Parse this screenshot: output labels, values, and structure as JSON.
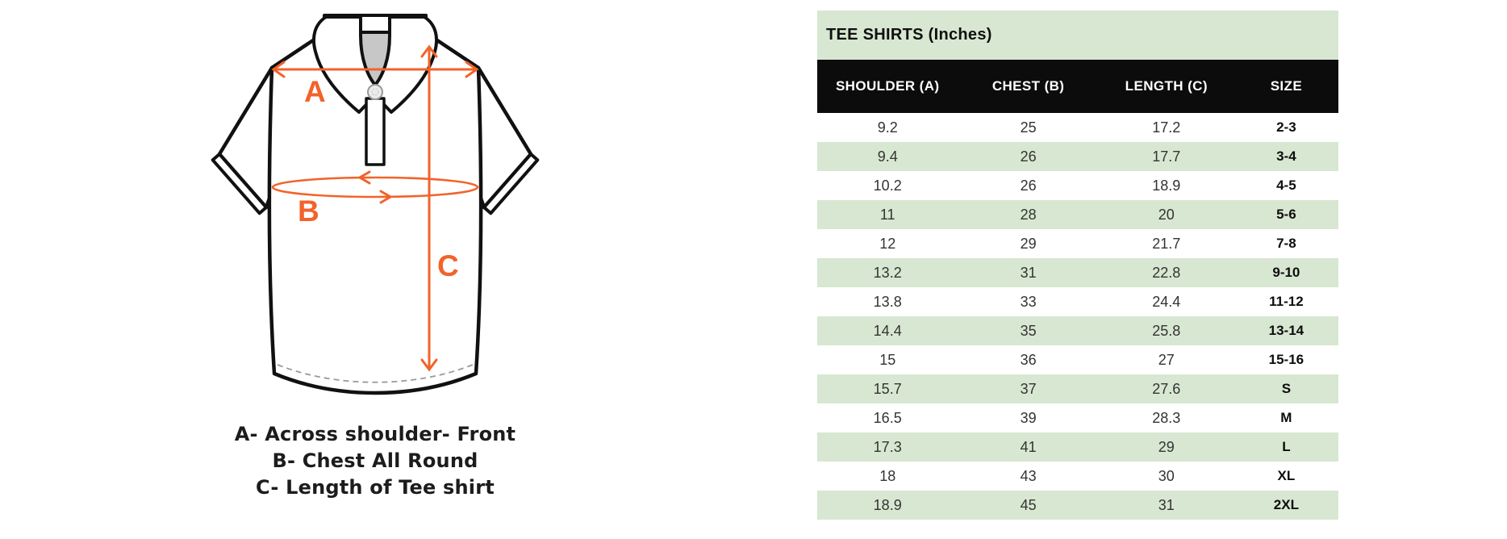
{
  "table": {
    "title": "TEE SHIRTS (Inches)",
    "columns": [
      "SHOULDER (A)",
      "CHEST (B)",
      "LENGTH (C)",
      "SIZE"
    ],
    "rows": [
      [
        "9.2",
        "25",
        "17.2",
        "2-3"
      ],
      [
        "9.4",
        "26",
        "17.7",
        "3-4"
      ],
      [
        "10.2",
        "26",
        "18.9",
        "4-5"
      ],
      [
        "11",
        "28",
        "20",
        "5-6"
      ],
      [
        "12",
        "29",
        "21.7",
        "7-8"
      ],
      [
        "13.2",
        "31",
        "22.8",
        "9-10"
      ],
      [
        "13.8",
        "33",
        "24.4",
        "11-12"
      ],
      [
        "14.4",
        "35",
        "25.8",
        "13-14"
      ],
      [
        "15",
        "36",
        "27",
        "15-16"
      ],
      [
        "15.7",
        "37",
        "27.6",
        "S"
      ],
      [
        "16.5",
        "39",
        "28.3",
        "M"
      ],
      [
        "17.3",
        "41",
        "29",
        "L"
      ],
      [
        "18",
        "43",
        "30",
        "XL"
      ],
      [
        "18.9",
        "45",
        "31",
        "2XL"
      ]
    ]
  },
  "diagram": {
    "label_a": "A",
    "label_b": "B",
    "label_c": "C"
  },
  "legend": {
    "line_a": "A- Across shoulder- Front",
    "line_b": "B- Chest All Round",
    "line_c": "C- Length of Tee shirt"
  },
  "colors": {
    "accent_orange": "#F2632A",
    "row_green": "#D8E7D1",
    "header_black": "#0C0C0C"
  }
}
